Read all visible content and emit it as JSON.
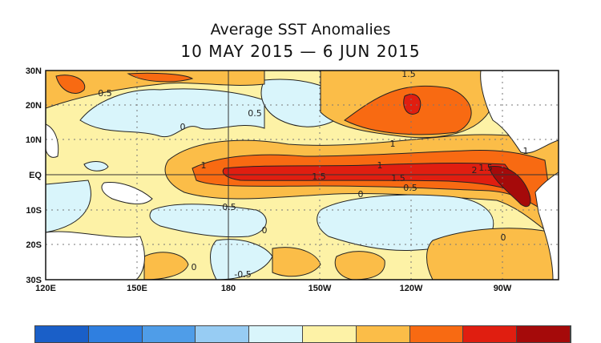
{
  "title": "Average SST Anomalies",
  "subtitle": "10 MAY 2015 — 6 JUN 2015",
  "map": {
    "lat_labels": [
      "30N",
      "20N",
      "10N",
      "EQ",
      "10S",
      "20S",
      "30S"
    ],
    "lon_labels": [
      "120E",
      "150E",
      "180",
      "150W",
      "120W",
      "90W"
    ],
    "contour_labels": [
      "0.5",
      "0.5",
      "0",
      "1",
      "1",
      "1",
      "1",
      "1.5",
      "1.5",
      "1.5",
      "2",
      "1.5",
      "0.5",
      "0.5",
      "0",
      "0",
      "0",
      "-0.5",
      "0"
    ]
  },
  "colorbar": {
    "colors": [
      "#1a5fc8",
      "#2f7fe0",
      "#4f9de8",
      "#97ccf3",
      "#d9f5fb",
      "#fdf2a6",
      "#fbbd48",
      "#f86a12",
      "#e01e10",
      "#a50a0a"
    ]
  }
}
